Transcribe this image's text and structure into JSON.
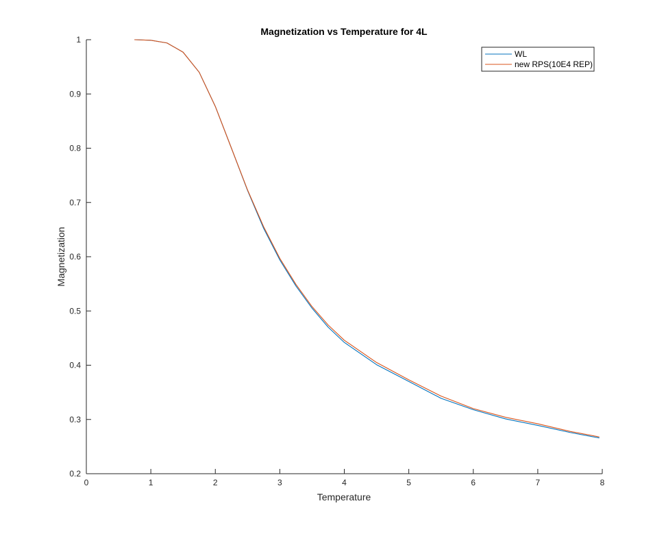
{
  "chart_data": {
    "type": "line",
    "title": "Magnetization vs Temperature for 4L",
    "xlabel": "Temperature",
    "ylabel": "Magnetization",
    "xlim": [
      0,
      8
    ],
    "ylim": [
      0.2,
      1
    ],
    "xticks": [
      0,
      1,
      2,
      3,
      4,
      5,
      6,
      7,
      8
    ],
    "xtick_labels": [
      "0",
      "1",
      "2",
      "3",
      "4",
      "5",
      "6",
      "7",
      "8"
    ],
    "yticks": [
      0.2,
      0.3,
      0.4,
      0.5,
      0.6,
      0.7,
      0.8,
      0.9,
      1
    ],
    "ytick_labels": [
      "0.2",
      "0.3",
      "0.4",
      "0.5",
      "0.6",
      "0.7",
      "0.8",
      "0.9",
      "1"
    ],
    "grid": false,
    "legend_position": "top-right",
    "x": [
      0.75,
      1.0,
      1.25,
      1.5,
      1.75,
      2.0,
      2.25,
      2.5,
      2.75,
      3.0,
      3.25,
      3.5,
      3.75,
      4.0,
      4.5,
      5.0,
      5.5,
      6.0,
      6.5,
      7.0,
      7.5,
      7.95
    ],
    "series": [
      {
        "name": "WL",
        "color": "#0072BD",
        "values": [
          1.0,
          0.999,
          0.994,
          0.977,
          0.94,
          0.877,
          0.8,
          0.722,
          0.652,
          0.594,
          0.546,
          0.505,
          0.47,
          0.442,
          0.401,
          0.37,
          0.339,
          0.318,
          0.301,
          0.289,
          0.276,
          0.266
        ]
      },
      {
        "name": "new RPS(10E4 REP)",
        "color": "#D95319",
        "values": [
          1.0,
          0.999,
          0.994,
          0.977,
          0.94,
          0.877,
          0.8,
          0.723,
          0.655,
          0.597,
          0.549,
          0.508,
          0.474,
          0.446,
          0.405,
          0.373,
          0.343,
          0.32,
          0.304,
          0.292,
          0.278,
          0.268
        ]
      }
    ]
  }
}
